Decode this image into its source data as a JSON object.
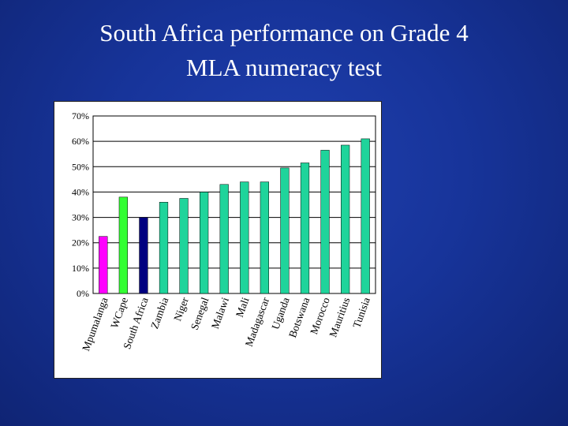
{
  "slide": {
    "title_line1": "South Africa performance on Grade 4",
    "title_line2": "MLA numeracy test"
  },
  "chart_data": {
    "type": "bar",
    "categories": [
      "Mpumalanga",
      "WCape",
      "South Africa",
      "Zambia",
      "Niger",
      "Senegal",
      "Malawi",
      "Mali",
      "Madagascar",
      "Uganda",
      "Botswana",
      "Morocco",
      "Mauritius",
      "Tunisia"
    ],
    "values": [
      22.5,
      38,
      30,
      36,
      37.5,
      40,
      43,
      44,
      44,
      49.5,
      51.5,
      56.5,
      58.5,
      61
    ],
    "value_format": "percent",
    "bar_colors": [
      "#ff00ff",
      "#33ff33",
      "#000080",
      "#1fd49b",
      "#1fd49b",
      "#1fd49b",
      "#1fd49b",
      "#1fd49b",
      "#1fd49b",
      "#1fd49b",
      "#1fd49b",
      "#1fd49b",
      "#1fd49b",
      "#1fd49b"
    ],
    "ylim": [
      0,
      70
    ],
    "yticks": [
      "0%",
      "10%",
      "20%",
      "30%",
      "40%",
      "50%",
      "60%",
      "70%"
    ],
    "ytick_values": [
      0,
      10,
      20,
      30,
      40,
      50,
      60,
      70
    ],
    "grid": "horizontal major gridlines",
    "legend": "none",
    "xlabel": "",
    "ylabel": ""
  }
}
